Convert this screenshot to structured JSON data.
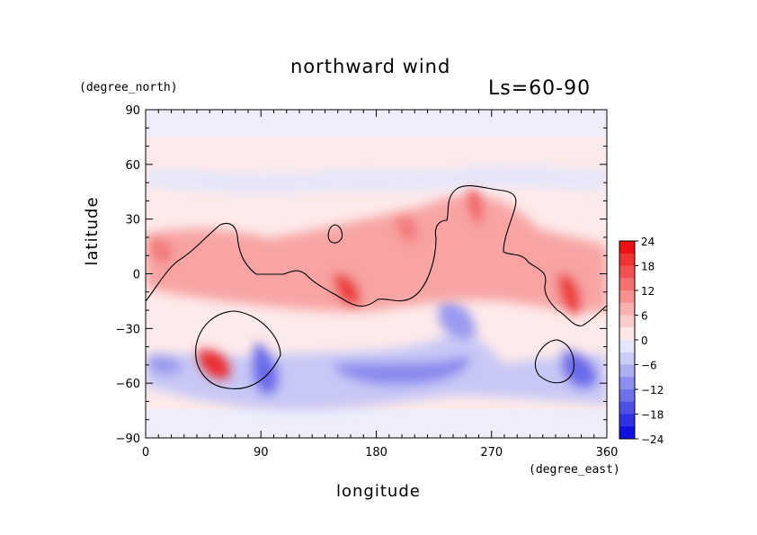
{
  "chart_data": {
    "type": "heatmap",
    "title": "northward wind",
    "subtitle": "Ls=60-90",
    "xlabel": "longitude",
    "ylabel": "latitude",
    "x_unit": "(degree_east)",
    "y_unit": "(degree_north)",
    "xlim": [
      0,
      360
    ],
    "ylim": [
      -90,
      90
    ],
    "x_ticks": [
      "0",
      "90",
      "180",
      "270",
      "360"
    ],
    "y_ticks": [
      "90",
      "60",
      "30",
      "0",
      "−30",
      "−60",
      "−90"
    ],
    "x_tick_values": [
      0,
      90,
      180,
      270,
      360
    ],
    "y_tick_values": [
      90,
      60,
      30,
      0,
      -30,
      -60,
      -90
    ],
    "colorbar": {
      "levels": [
        24,
        21,
        18,
        15,
        12,
        9,
        6,
        3,
        0,
        -3,
        -6,
        -9,
        -12,
        -15,
        -18,
        -21,
        -24
      ],
      "labels": [
        "24",
        "18",
        "12",
        "6",
        "0",
        "−6",
        "−12",
        "−18",
        "−24"
      ],
      "colors": [
        "#ee1111",
        "#f23333",
        "#f45050",
        "#f67070",
        "#f89090",
        "#fab0b0",
        "#fccccc",
        "#fde6e6",
        "#e6e6fb",
        "#ccccf8",
        "#aeaef4",
        "#8e8ef0",
        "#7070ec",
        "#5050e8",
        "#3030e4",
        "#1010e0"
      ]
    },
    "features": [
      {
        "name": "warm band",
        "lon": 150,
        "lat": -10,
        "value": 10
      },
      {
        "name": "warm band east",
        "lon": 335,
        "lat": -15,
        "value": 16
      },
      {
        "name": "warm spot",
        "lon": 50,
        "lat": -50,
        "value": 18
      },
      {
        "name": "cold band",
        "lon": 180,
        "lat": -60,
        "value": -8
      },
      {
        "name": "cold spot",
        "lon": 95,
        "lat": -60,
        "value": -12
      },
      {
        "name": "cold spot east",
        "lon": 335,
        "lat": -52,
        "value": -12
      }
    ]
  }
}
